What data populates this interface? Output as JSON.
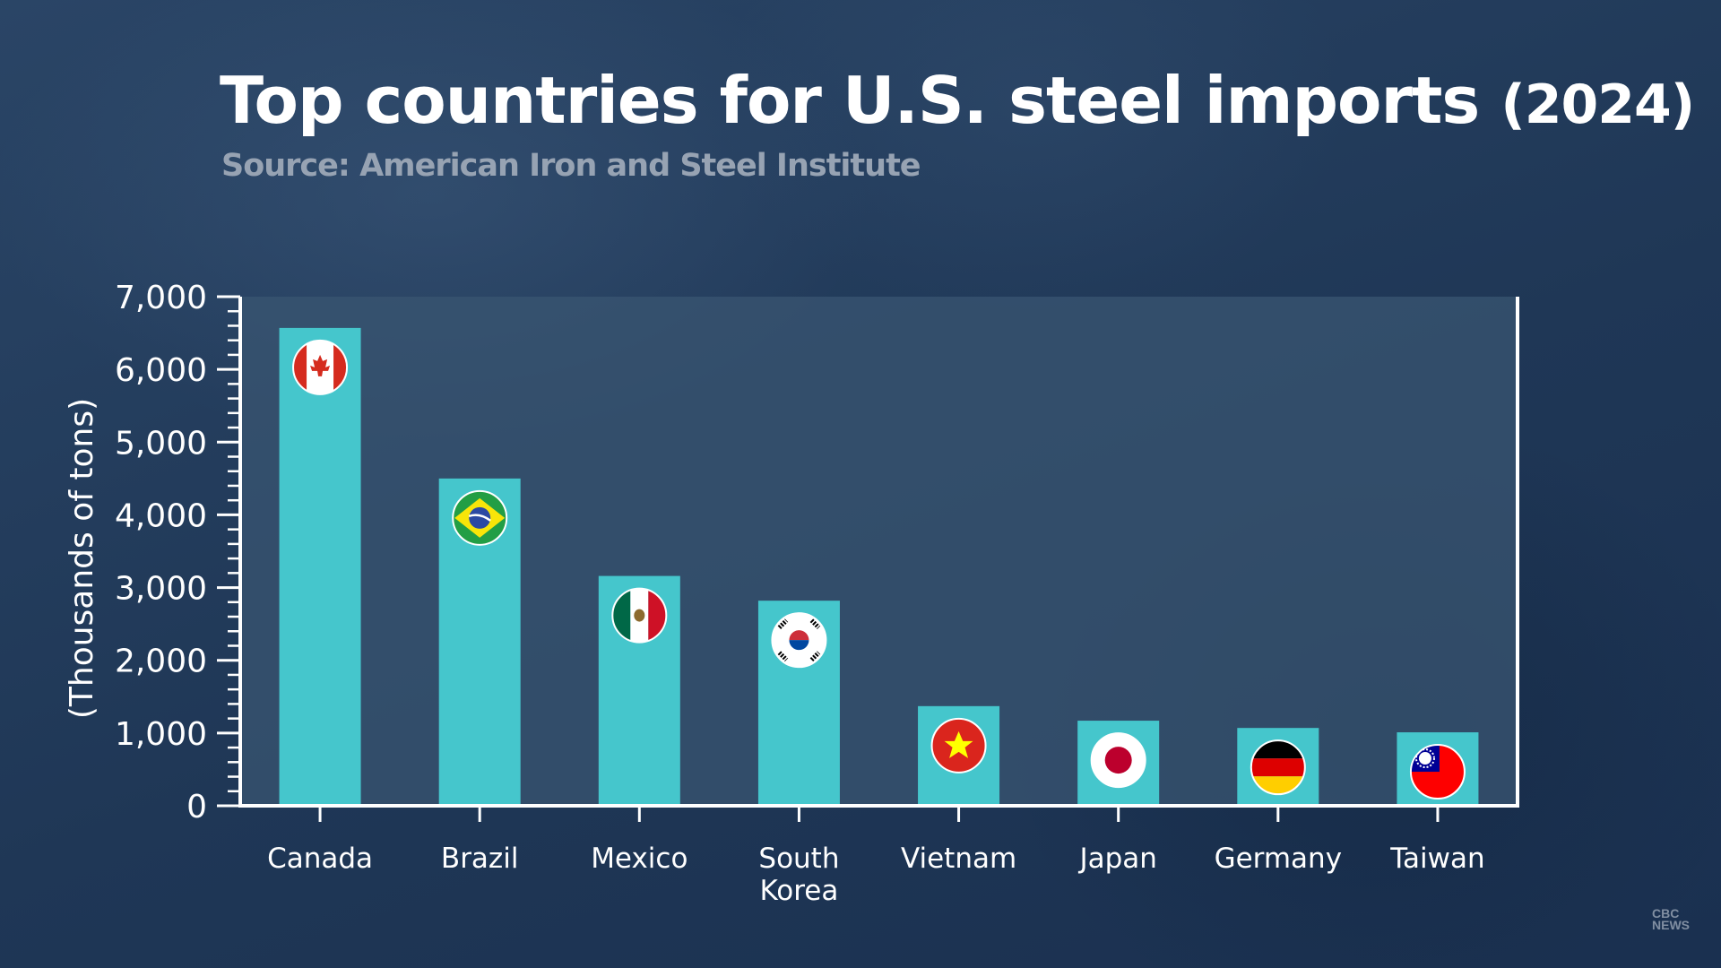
{
  "chart_data": {
    "type": "bar",
    "title": "Top countries for U.S. steel imports",
    "title_year": "(2024)",
    "subtitle": "Source: American Iron and Steel Institute",
    "ylabel": "(Thousands of tons)",
    "xlabel": "",
    "ylim": [
      0,
      7000
    ],
    "yticks": [
      0,
      1000,
      2000,
      3000,
      4000,
      5000,
      6000,
      7000
    ],
    "ytick_labels": [
      "0",
      "1,000",
      "2,000",
      "3,000",
      "4,000",
      "5,000",
      "6,000",
      "7,000"
    ],
    "categories": [
      "Canada",
      "Brazil",
      "Mexico",
      "South Korea",
      "Vietnam",
      "Japan",
      "Germany",
      "Taiwan"
    ],
    "category_label_lines": [
      [
        "Canada"
      ],
      [
        "Brazil"
      ],
      [
        "Mexico"
      ],
      [
        "South",
        "Korea"
      ],
      [
        "Vietnam"
      ],
      [
        "Japan"
      ],
      [
        "Germany"
      ],
      [
        "Taiwan"
      ]
    ],
    "values": [
      6570,
      4500,
      3160,
      2820,
      1370,
      1170,
      1070,
      1010
    ],
    "flag_icons": [
      "canada-flag-icon",
      "brazil-flag-icon",
      "mexico-flag-icon",
      "south-korea-flag-icon",
      "vietnam-flag-icon",
      "japan-flag-icon",
      "germany-flag-icon",
      "taiwan-flag-icon"
    ],
    "grid": false,
    "legend": "none",
    "bar_color": "#45c6cc",
    "plot_background": "#3a5572",
    "axis_color": "#ffffff"
  },
  "watermark": {
    "line1": "CBC",
    "line2": "NEWS"
  }
}
